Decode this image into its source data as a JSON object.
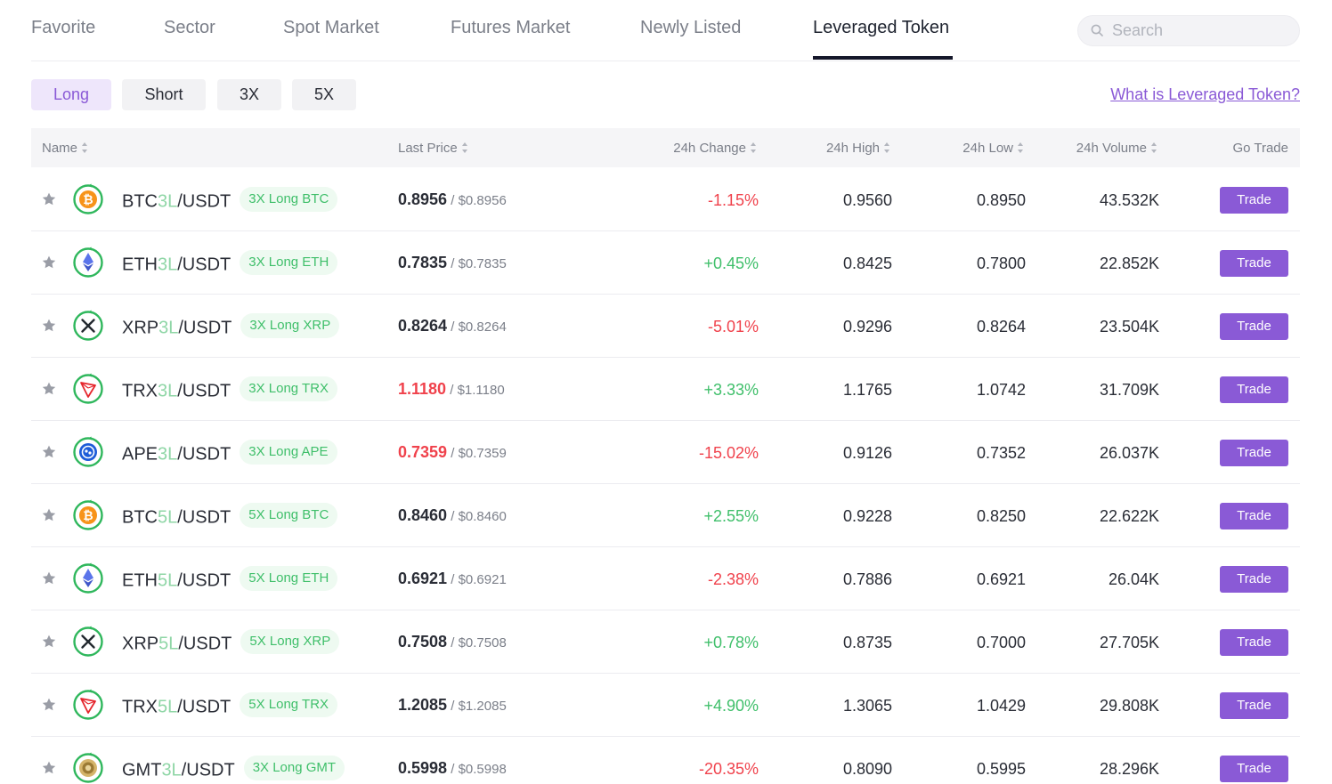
{
  "nav": {
    "tabs": [
      {
        "label": "Favorite"
      },
      {
        "label": "Sector"
      },
      {
        "label": "Spot Market"
      },
      {
        "label": "Futures Market"
      },
      {
        "label": "Newly Listed"
      },
      {
        "label": "Leveraged Token",
        "active": true
      }
    ],
    "search_placeholder": "Search"
  },
  "filters": [
    "Long",
    "Short",
    "3X",
    "5X"
  ],
  "active_filter": "Long",
  "help_link": "What is Leveraged Token?",
  "columns": {
    "name": "Name",
    "last_price": "Last Price",
    "change": "24h Change",
    "high": "24h High",
    "low": "24h Low",
    "volume": "24h Volume",
    "go_trade": "Go Trade"
  },
  "colors": {
    "accent": "#8a5ad6",
    "up": "#3fbf6a",
    "down": "#f0424c"
  },
  "rows": [
    {
      "base": "BTC",
      "lev": "3L",
      "quote": "/USDT",
      "tag": "3X Long BTC",
      "coin_icon": "bitcoin-icon",
      "price": "0.8956",
      "price_red": false,
      "usd": "$0.8956",
      "change": "-1.15%",
      "dir": "down",
      "high": "0.9560",
      "low": "0.8950",
      "volume": "43.532K",
      "trade": "Trade"
    },
    {
      "base": "ETH",
      "lev": "3L",
      "quote": "/USDT",
      "tag": "3X Long ETH",
      "coin_icon": "ethereum-icon",
      "price": "0.7835",
      "price_red": false,
      "usd": "$0.7835",
      "change": "+0.45%",
      "dir": "up",
      "high": "0.8425",
      "low": "0.7800",
      "volume": "22.852K",
      "trade": "Trade"
    },
    {
      "base": "XRP",
      "lev": "3L",
      "quote": "/USDT",
      "tag": "3X Long XRP",
      "coin_icon": "xrp-icon",
      "price": "0.8264",
      "price_red": false,
      "usd": "$0.8264",
      "change": "-5.01%",
      "dir": "down",
      "high": "0.9296",
      "low": "0.8264",
      "volume": "23.504K",
      "trade": "Trade"
    },
    {
      "base": "TRX",
      "lev": "3L",
      "quote": "/USDT",
      "tag": "3X Long TRX",
      "coin_icon": "tron-icon",
      "price": "1.1180",
      "price_red": true,
      "usd": "$1.1180",
      "change": "+3.33%",
      "dir": "up",
      "high": "1.1765",
      "low": "1.0742",
      "volume": "31.709K",
      "trade": "Trade"
    },
    {
      "base": "APE",
      "lev": "3L",
      "quote": "/USDT",
      "tag": "3X Long APE",
      "coin_icon": "apecoin-icon",
      "price": "0.7359",
      "price_red": true,
      "usd": "$0.7359",
      "change": "-15.02%",
      "dir": "down",
      "high": "0.9126",
      "low": "0.7352",
      "volume": "26.037K",
      "trade": "Trade"
    },
    {
      "base": "BTC",
      "lev": "5L",
      "quote": "/USDT",
      "tag": "5X Long BTC",
      "coin_icon": "bitcoin-icon",
      "price": "0.8460",
      "price_red": false,
      "usd": "$0.8460",
      "change": "+2.55%",
      "dir": "up",
      "high": "0.9228",
      "low": "0.8250",
      "volume": "22.622K",
      "trade": "Trade"
    },
    {
      "base": "ETH",
      "lev": "5L",
      "quote": "/USDT",
      "tag": "5X Long ETH",
      "coin_icon": "ethereum-icon",
      "price": "0.6921",
      "price_red": false,
      "usd": "$0.6921",
      "change": "-2.38%",
      "dir": "down",
      "high": "0.7886",
      "low": "0.6921",
      "volume": "26.04K",
      "trade": "Trade"
    },
    {
      "base": "XRP",
      "lev": "5L",
      "quote": "/USDT",
      "tag": "5X Long XRP",
      "coin_icon": "xrp-icon",
      "price": "0.7508",
      "price_red": false,
      "usd": "$0.7508",
      "change": "+0.78%",
      "dir": "up",
      "high": "0.8735",
      "low": "0.7000",
      "volume": "27.705K",
      "trade": "Trade"
    },
    {
      "base": "TRX",
      "lev": "5L",
      "quote": "/USDT",
      "tag": "5X Long TRX",
      "coin_icon": "tron-icon",
      "price": "1.2085",
      "price_red": false,
      "usd": "$1.2085",
      "change": "+4.90%",
      "dir": "up",
      "high": "1.3065",
      "low": "1.0429",
      "volume": "29.808K",
      "trade": "Trade"
    },
    {
      "base": "GMT",
      "lev": "3L",
      "quote": "/USDT",
      "tag": "3X Long GMT",
      "coin_icon": "gmt-icon",
      "price": "0.5998",
      "price_red": false,
      "usd": "$0.5998",
      "change": "-20.35%",
      "dir": "down",
      "high": "0.8090",
      "low": "0.5995",
      "volume": "28.296K",
      "trade": "Trade"
    }
  ]
}
